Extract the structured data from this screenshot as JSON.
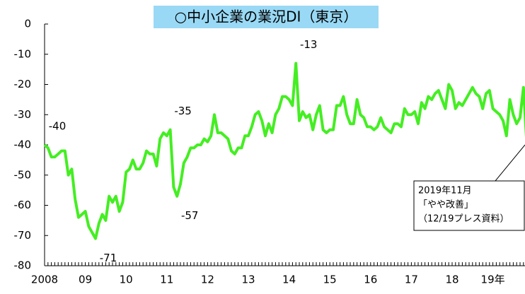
{
  "chart_data": {
    "type": "line",
    "title": "○中小企業の業況DI（東京）",
    "categories": [
      "2008",
      null,
      null,
      null,
      null,
      null,
      null,
      null,
      null,
      null,
      null,
      null,
      "09",
      null,
      null,
      null,
      null,
      null,
      null,
      null,
      null,
      null,
      null,
      null,
      "10",
      null,
      null,
      null,
      null,
      null,
      null,
      null,
      null,
      null,
      null,
      null,
      "11",
      null,
      null,
      null,
      null,
      null,
      null,
      null,
      null,
      null,
      null,
      null,
      "12",
      null,
      null,
      null,
      null,
      null,
      null,
      null,
      null,
      null,
      null,
      null,
      "13",
      null,
      null,
      null,
      null,
      null,
      null,
      null,
      null,
      null,
      null,
      null,
      "14",
      null,
      null,
      null,
      null,
      null,
      null,
      null,
      null,
      null,
      null,
      null,
      "15",
      null,
      null,
      null,
      null,
      null,
      null,
      null,
      null,
      null,
      null,
      null,
      "16",
      null,
      null,
      null,
      null,
      null,
      null,
      null,
      null,
      null,
      null,
      null,
      "17",
      null,
      null,
      null,
      null,
      null,
      null,
      null,
      null,
      null,
      null,
      null,
      "18",
      null,
      null,
      null,
      null,
      null,
      null,
      null,
      null,
      null,
      null,
      null,
      "19年",
      null,
      null,
      null,
      null,
      null,
      null,
      null,
      null,
      null,
      null
    ],
    "values": [
      -40,
      -41,
      -44,
      -44,
      -43,
      -42,
      -42,
      -50,
      -48,
      -58,
      -64,
      -63,
      -62,
      -67,
      -69,
      -71,
      -66,
      -63,
      -65,
      -57,
      -59,
      -57,
      -62,
      -59,
      -49,
      -48,
      -45,
      -48,
      -48,
      -46,
      -42,
      -43,
      -43,
      -47,
      -38,
      -36,
      -37,
      -35,
      -54,
      -57,
      -53,
      -46,
      -44,
      -41,
      -41,
      -40,
      -40,
      -38,
      -39,
      -37,
      -30,
      -36,
      -36,
      -37,
      -38,
      -42,
      -43,
      -41,
      -41,
      -37,
      -37,
      -34,
      -30,
      -29,
      -32,
      -37,
      -33,
      -36,
      -30,
      -28,
      -24,
      -24,
      -25,
      -27,
      -13,
      -32,
      -29,
      -31,
      -30,
      -35,
      -30,
      -27,
      -35,
      -36,
      -35,
      -35,
      -27,
      -27,
      -24,
      -30,
      -33,
      -33,
      -25,
      -30,
      -31,
      -34,
      -34,
      -35,
      -34,
      -31,
      -34,
      -35,
      -36,
      -33,
      -33,
      -34,
      -28,
      -30,
      -30,
      -29,
      -33,
      -26,
      -28,
      -24,
      -25,
      -23,
      -22,
      -25,
      -28,
      -20,
      -22,
      -28,
      -26,
      -27,
      -25,
      -23,
      -21,
      -23,
      -24,
      -28,
      -23,
      -22,
      -28,
      -29,
      -30,
      -32,
      -37,
      -25,
      -30,
      -33,
      -31,
      -21,
      -40
    ],
    "value_labels": [
      "-40",
      null,
      null,
      null,
      null,
      null,
      null,
      null,
      null,
      null,
      null,
      null,
      null,
      null,
      null,
      "-71",
      null,
      null,
      null,
      null,
      null,
      null,
      null,
      null,
      null,
      null,
      null,
      null,
      null,
      null,
      null,
      null,
      null,
      null,
      null,
      null,
      null,
      "-35",
      null,
      "-57",
      null,
      null,
      null,
      null,
      null,
      null,
      null,
      null,
      null,
      null,
      null,
      null,
      null,
      null,
      null,
      null,
      null,
      null,
      null,
      null,
      null,
      null,
      null,
      null,
      null,
      null,
      null,
      null,
      null,
      null,
      null,
      null,
      null,
      null,
      "-13",
      null,
      null,
      null,
      null,
      null,
      null,
      null,
      null,
      null,
      null,
      null,
      null,
      null,
      null,
      null,
      null,
      null,
      null,
      null,
      null,
      null,
      null,
      null,
      null,
      null,
      null,
      null,
      null,
      null,
      null,
      null,
      null,
      null,
      null,
      null,
      null,
      null,
      null,
      null,
      null,
      null,
      null,
      null,
      null,
      null,
      null,
      null,
      null,
      null,
      null,
      null,
      null,
      null,
      null,
      null,
      null,
      null,
      null,
      null,
      null,
      null,
      null,
      null,
      null,
      null,
      null,
      null,
      null
    ],
    "color": "#44ee22",
    "ylim": [
      -80,
      0
    ],
    "yticks": [
      0,
      -10,
      -20,
      -30,
      -40,
      -50,
      -60,
      -70,
      -80
    ],
    "callout": [
      "2019年11月",
      "「やや改善」",
      "（12/19プレス資料）"
    ]
  }
}
